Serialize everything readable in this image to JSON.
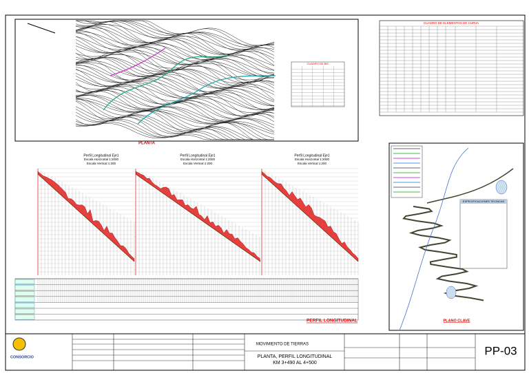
{
  "plan": {
    "title": "PLANTA",
    "bm_table_title": "CUADRO DE BM"
  },
  "curve_table": {
    "title": "CUADRO DE ELEMENTOS DE CURVA"
  },
  "profiles": [
    {
      "title": "Perfil Longitudinal Eje1",
      "h_scale": "Escala Horizontal 1:2000",
      "v_scale": "Escala Vertical 1:200"
    },
    {
      "title": "Perfil Longitudinal Eje1",
      "h_scale": "Escala Horizontal 1:2000",
      "v_scale": "Escala Vertical 1:200"
    },
    {
      "title": "Perfil Longitudinal Eje1",
      "h_scale": "Escala Horizontal 1:2000",
      "v_scale": "Escala Vertical 1:200"
    }
  ],
  "profile_section_title": "PERFIL LONGITUDINAL",
  "key_map": {
    "spec_title": "ESPECIFICACIONES TECNICAS",
    "title": "PLANO CLAVE"
  },
  "title_block": {
    "logo": "CONSORCIO",
    "project": "MOVIMIENTO DE TIERRAS",
    "sheet_title": "PLANTA, PERFIL LONGITUDINAL",
    "range": "KM 3+490 AL 4+500",
    "sheet_id": "PP-03"
  }
}
